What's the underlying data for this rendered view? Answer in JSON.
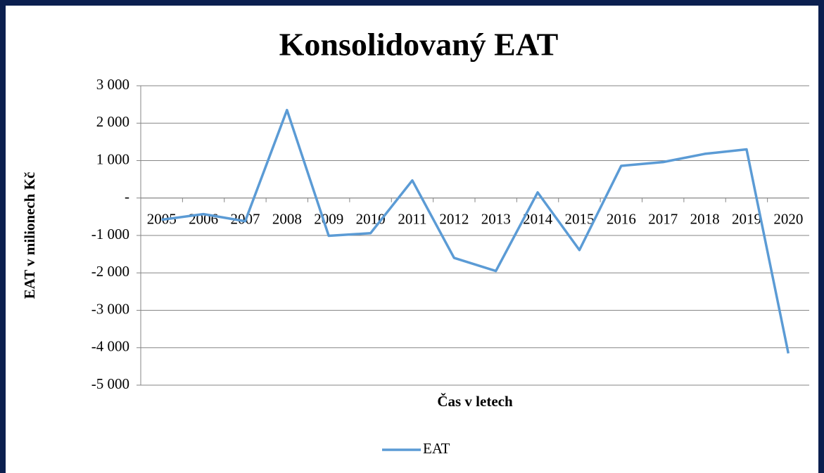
{
  "chart_data": {
    "type": "line",
    "title": "Konsolidovaný EAT",
    "y_label": "EAT v milionech Kč",
    "x_label": "Čas v letech",
    "categories": [
      "2005",
      "2006",
      "2007",
      "2008",
      "2009",
      "2010",
      "2011",
      "2012",
      "2013",
      "2014",
      "2015",
      "2016",
      "2017",
      "2018",
      "2019",
      "2020"
    ],
    "series": [
      {
        "name": "EAT",
        "color": "#5b9bd5",
        "values": [
          -580,
          -430,
          -620,
          2350,
          -1010,
          -940,
          470,
          -1600,
          -1950,
          150,
          -1390,
          860,
          960,
          1180,
          1300,
          -4150
        ]
      }
    ],
    "ylim": [
      -5000,
      3000
    ],
    "yticks": [
      {
        "value": -5000,
        "label": "-5 000"
      },
      {
        "value": -4000,
        "label": "-4 000"
      },
      {
        "value": -3000,
        "label": "-3 000"
      },
      {
        "value": -2000,
        "label": "-2 000"
      },
      {
        "value": -1000,
        "label": "-1 000"
      },
      {
        "value": 0,
        "label": "-"
      },
      {
        "value": 1000,
        "label": "1 000"
      },
      {
        "value": 2000,
        "label": "2 000"
      },
      {
        "value": 3000,
        "label": "3 000"
      }
    ],
    "grid": true,
    "legend": "bottom"
  }
}
